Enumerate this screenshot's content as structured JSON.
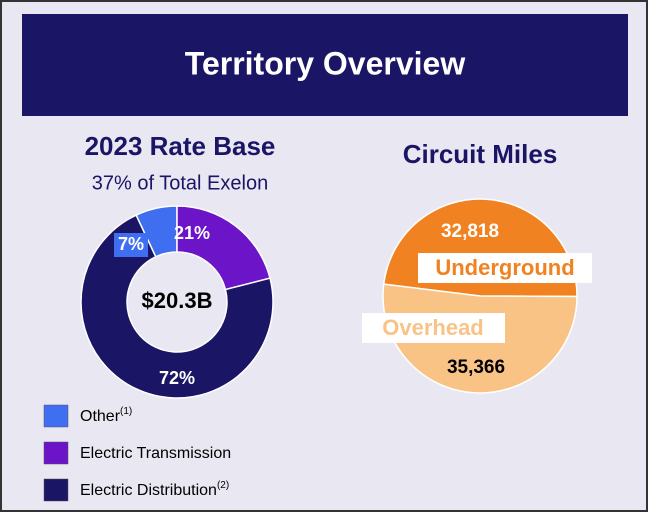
{
  "header": {
    "title": "Territory Overview"
  },
  "chart_data": [
    {
      "type": "donut",
      "title": "2023 Rate Base",
      "subtitle": "37% of Total Exelon",
      "center_label": "$20.3B",
      "categories": [
        "Other",
        "Electric Transmission",
        "Electric Distribution"
      ],
      "category_notes": [
        "(1)",
        null,
        "(2)"
      ],
      "values": [
        7,
        21,
        72
      ],
      "value_labels": [
        "7%",
        "21%",
        "72%"
      ],
      "colors": [
        "#3f6ff0",
        "#6c14c8",
        "#1b1566"
      ]
    },
    {
      "type": "pie",
      "title": "Circuit Miles",
      "categories": [
        "Underground",
        "Overhead"
      ],
      "values": [
        32818,
        35366
      ],
      "value_labels": [
        "32,818",
        "35,366"
      ],
      "colors": [
        "#f18221",
        "#f9c386"
      ]
    }
  ]
}
